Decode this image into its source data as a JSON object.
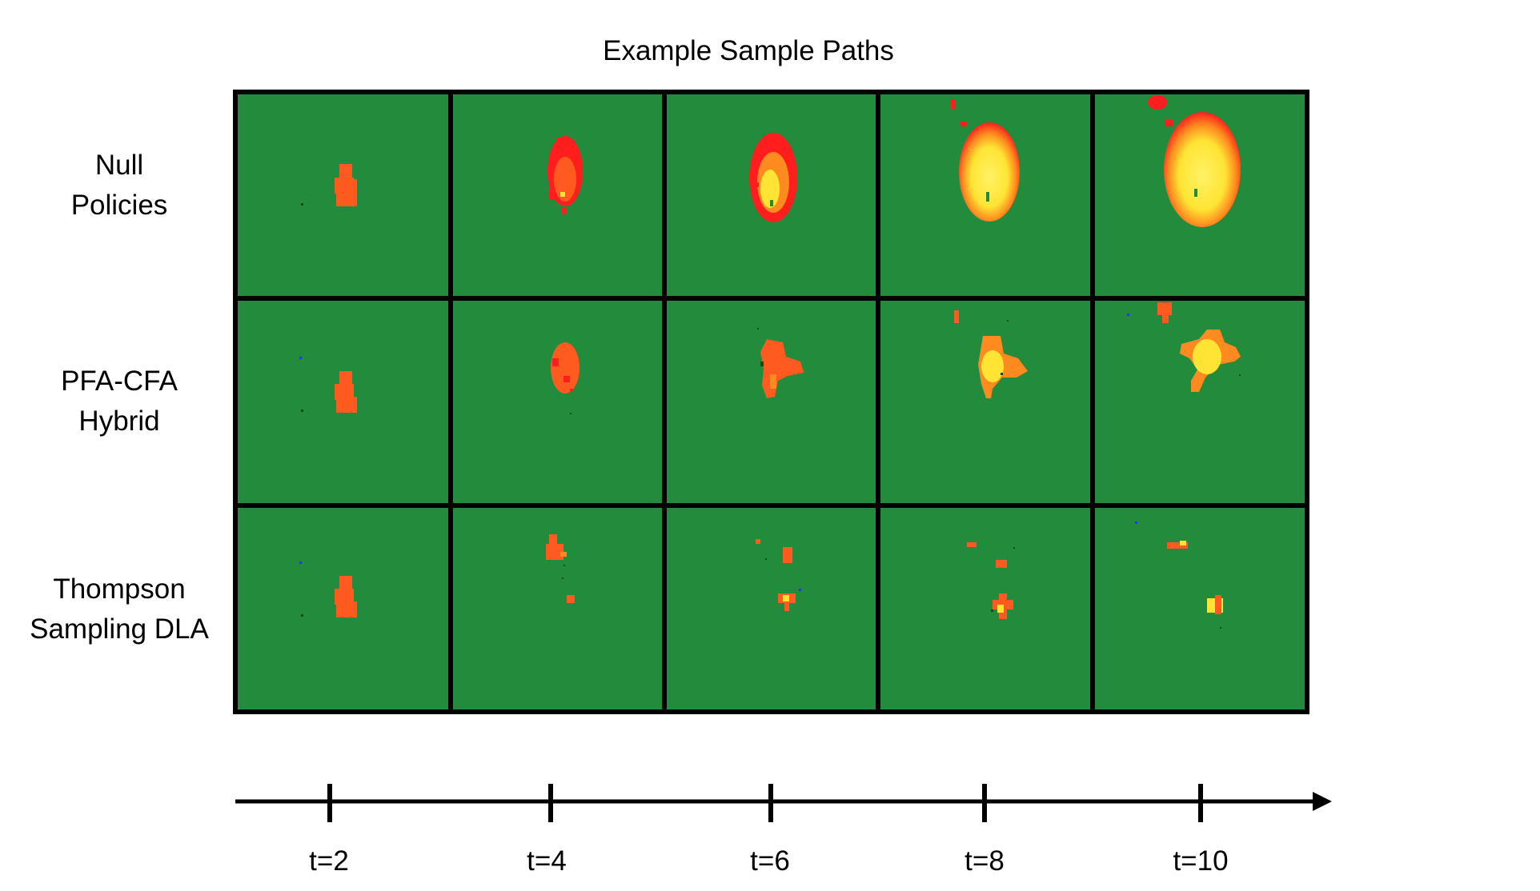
{
  "title": "Example Sample Paths",
  "rows": [
    {
      "id": "null",
      "lines": [
        "Null",
        "Policies"
      ]
    },
    {
      "id": "hybrid",
      "lines": [
        "PFA-CFA",
        "Hybrid"
      ]
    },
    {
      "id": "thompson",
      "lines": [
        "Thompson",
        "Sampling DLA"
      ]
    }
  ],
  "time_labels": [
    "t=2",
    "t=4",
    "t=6",
    "t=8",
    "t=10"
  ],
  "colors": {
    "background": "#228B3C",
    "fire_orange": "#FF5A1F",
    "fire_red": "#FF1E1E",
    "fire_yellow": "#FFE433",
    "fire_light_yellow": "#FFF266",
    "border": "#000000"
  }
}
